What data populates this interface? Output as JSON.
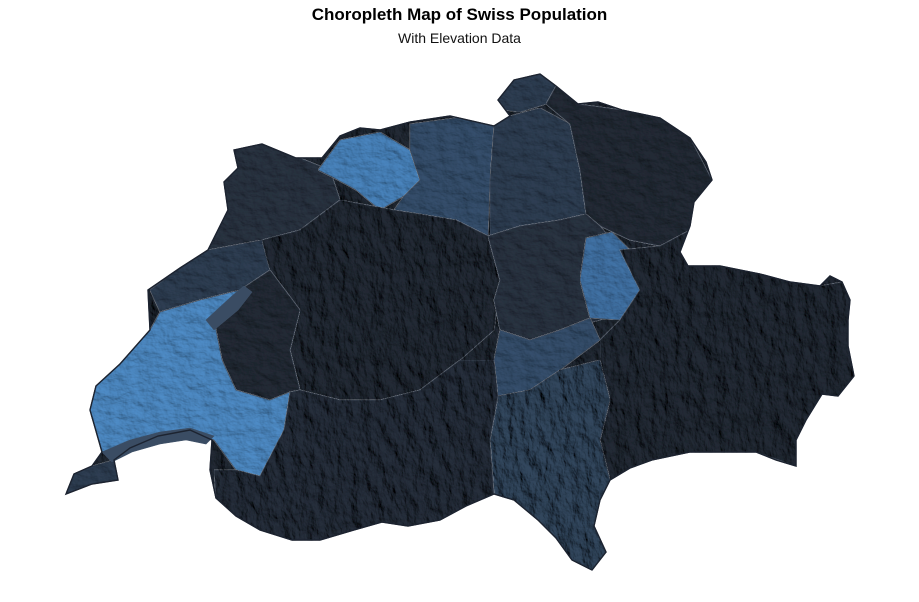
{
  "title": "Choropleth Map of Swiss Population",
  "subtitle": "With Elevation Data",
  "colors": {
    "background": "#ffffff",
    "outline": "#1c2330",
    "low": "#232b36",
    "mid": "#2f3f54",
    "high": "#4a86c0",
    "highest": "#5a98d2"
  },
  "map_data": {
    "type": "choropleth",
    "region": "Switzerland",
    "overlay": "hillshade elevation",
    "palette": [
      "#232b36",
      "#2a3442",
      "#2f3f54",
      "#36506e",
      "#4274a8",
      "#5a98d2"
    ]
  }
}
